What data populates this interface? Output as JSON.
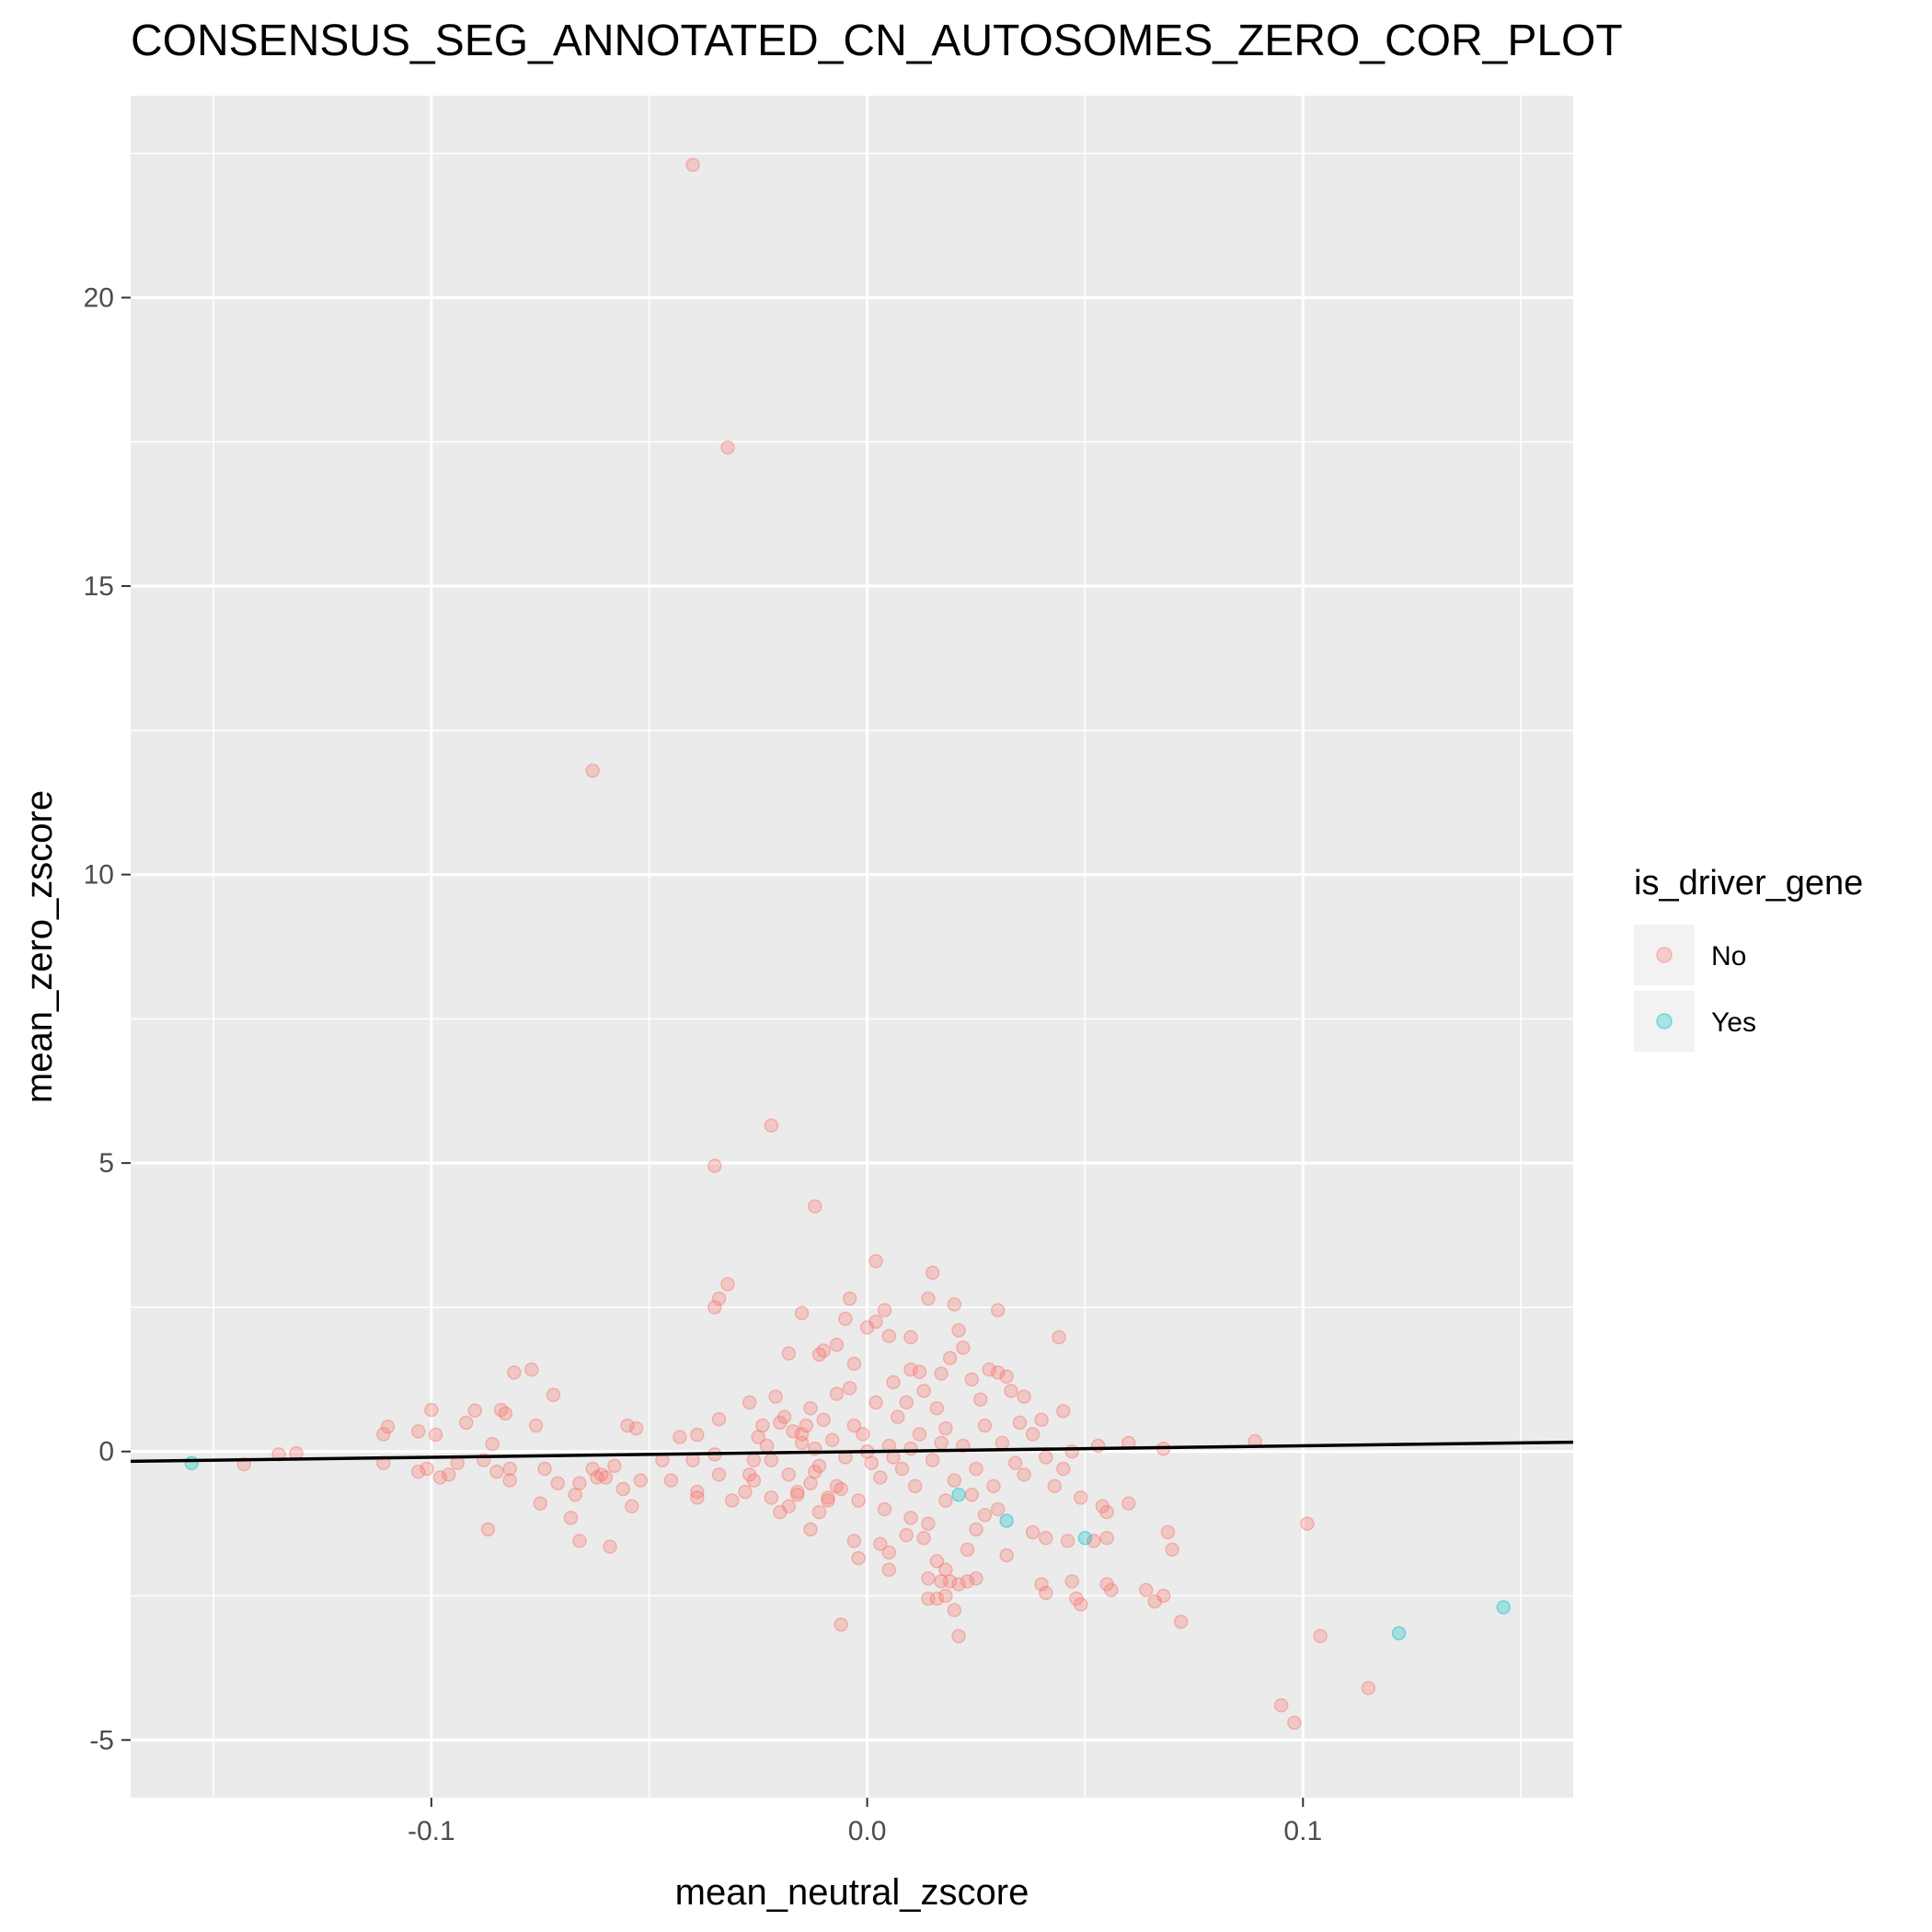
{
  "chart_data": {
    "type": "scatter",
    "title": "CONSENSUS_SEG_ANNOTATED_CN_AUTOSOMES_ZERO_COR_PLOT",
    "xlabel": "mean_neutral_zscore",
    "ylabel": "mean_zero_zscore",
    "xlim": [
      -0.169,
      0.162
    ],
    "ylim": [
      -6.0,
      23.5
    ],
    "x_ticks": [
      -0.1,
      0.0,
      0.1
    ],
    "x_tick_labels": [
      "-0.1",
      "0.0",
      "0.1"
    ],
    "y_ticks": [
      -5,
      0,
      5,
      10,
      15,
      20
    ],
    "y_tick_labels": [
      "-5",
      "0",
      "5",
      "10",
      "15",
      "20"
    ],
    "grid": true,
    "panel_background": "#ebebeb",
    "grid_color": "#ffffff",
    "legend": {
      "title": "is_driver_gene",
      "position": "right",
      "entries": [
        {
          "label": "No",
          "color": "#f8766d"
        },
        {
          "label": "Yes",
          "color": "#00bfc4"
        }
      ]
    },
    "trend_line": {
      "slope": 1.0,
      "intercept": 0.0,
      "color": "#000000"
    },
    "series": [
      {
        "name": "No",
        "color": "#f8766d",
        "opacity": 0.3,
        "points": [
          [
            -0.04,
            22.3
          ],
          [
            -0.032,
            17.4
          ],
          [
            -0.063,
            11.8
          ],
          [
            -0.022,
            5.65
          ],
          [
            -0.035,
            4.95
          ],
          [
            -0.012,
            4.25
          ],
          [
            0.002,
            3.3
          ],
          [
            0.015,
            3.1
          ],
          [
            -0.032,
            2.9
          ],
          [
            -0.034,
            2.65
          ],
          [
            -0.035,
            2.5
          ],
          [
            -0.004,
            2.65
          ],
          [
            0.014,
            2.65
          ],
          [
            0.02,
            2.55
          ],
          [
            0.03,
            2.45
          ],
          [
            0.004,
            2.45
          ],
          [
            -0.015,
            2.4
          ],
          [
            -0.005,
            2.3
          ],
          [
            0.002,
            2.25
          ],
          [
            0.0,
            2.15
          ],
          [
            0.021,
            2.1
          ],
          [
            0.005,
            2.0
          ],
          [
            0.01,
            1.98
          ],
          [
            0.044,
            1.98
          ],
          [
            -0.007,
            1.85
          ],
          [
            0.022,
            1.8
          ],
          [
            -0.01,
            1.75
          ],
          [
            -0.018,
            1.7
          ],
          [
            -0.011,
            1.68
          ],
          [
            0.019,
            1.62
          ],
          [
            -0.077,
            1.42
          ],
          [
            -0.081,
            1.37
          ],
          [
            -0.003,
            1.52
          ],
          [
            0.01,
            1.42
          ],
          [
            0.012,
            1.38
          ],
          [
            0.017,
            1.35
          ],
          [
            0.028,
            1.42
          ],
          [
            0.03,
            1.37
          ],
          [
            0.032,
            1.3
          ],
          [
            0.024,
            1.25
          ],
          [
            -0.072,
            0.98
          ],
          [
            -0.1,
            0.72
          ],
          [
            -0.09,
            0.71
          ],
          [
            -0.084,
            0.72
          ],
          [
            -0.083,
            0.66
          ],
          [
            -0.092,
            0.5
          ],
          [
            -0.11,
            0.43
          ],
          [
            -0.103,
            0.35
          ],
          [
            -0.111,
            0.3
          ],
          [
            -0.099,
            0.29
          ],
          [
            -0.086,
            0.13
          ],
          [
            -0.076,
            0.45
          ],
          [
            -0.034,
            0.56
          ],
          [
            -0.039,
            0.29
          ],
          [
            -0.043,
            0.25
          ],
          [
            -0.055,
            0.45
          ],
          [
            -0.053,
            0.4
          ],
          [
            -0.063,
            -0.3
          ],
          [
            -0.058,
            -0.25
          ],
          [
            -0.061,
            -0.4
          ],
          [
            -0.06,
            -0.45
          ],
          [
            -0.052,
            -0.5
          ],
          [
            -0.054,
            -0.95
          ],
          [
            -0.056,
            -0.65
          ],
          [
            -0.062,
            -0.45
          ],
          [
            -0.066,
            -0.55
          ],
          [
            -0.067,
            -0.75
          ],
          [
            -0.068,
            -1.15
          ],
          [
            -0.066,
            -1.55
          ],
          [
            -0.059,
            -1.65
          ],
          [
            -0.074,
            -0.3
          ],
          [
            -0.075,
            -0.9
          ],
          [
            -0.071,
            -0.55
          ],
          [
            -0.087,
            -1.35
          ],
          [
            -0.082,
            -0.3
          ],
          [
            -0.082,
            -0.5
          ],
          [
            -0.088,
            -0.15
          ],
          [
            -0.094,
            -0.2
          ],
          [
            -0.096,
            -0.4
          ],
          [
            -0.098,
            -0.45
          ],
          [
            -0.103,
            -0.35
          ],
          [
            -0.101,
            -0.3
          ],
          [
            -0.111,
            -0.2
          ],
          [
            -0.143,
            -0.22
          ],
          [
            -0.135,
            -0.05
          ],
          [
            -0.131,
            -0.03
          ],
          [
            -0.085,
            -0.35
          ],
          [
            -0.035,
            -0.05
          ],
          [
            -0.04,
            -0.15
          ],
          [
            -0.047,
            -0.15
          ],
          [
            -0.045,
            -0.5
          ],
          [
            -0.039,
            -0.7
          ],
          [
            -0.039,
            -0.8
          ],
          [
            -0.034,
            -0.4
          ],
          [
            -0.031,
            -0.85
          ],
          [
            -0.028,
            -0.7
          ],
          [
            -0.026,
            -0.5
          ],
          [
            -0.022,
            -0.8
          ],
          [
            -0.026,
            -0.15
          ],
          [
            -0.023,
            0.1
          ],
          [
            -0.024,
            0.45
          ],
          [
            -0.027,
            0.85
          ],
          [
            -0.021,
            0.95
          ],
          [
            -0.019,
            0.6
          ],
          [
            -0.017,
            0.35
          ],
          [
            -0.015,
            0.3
          ],
          [
            -0.013,
            0.75
          ],
          [
            -0.014,
            0.45
          ],
          [
            -0.012,
            -0.35
          ],
          [
            -0.013,
            -0.55
          ],
          [
            -0.016,
            -0.75
          ],
          [
            -0.018,
            -0.95
          ],
          [
            -0.02,
            -1.05
          ],
          [
            -0.013,
            -1.35
          ],
          [
            -0.011,
            -1.05
          ],
          [
            -0.009,
            -0.85
          ],
          [
            -0.007,
            -0.6
          ],
          [
            -0.006,
            -3.0
          ],
          [
            -0.003,
            -1.55
          ],
          [
            -0.002,
            -1.85
          ],
          [
            0.003,
            -1.6
          ],
          [
            0.005,
            -2.05
          ],
          [
            0.005,
            -1.75
          ],
          [
            0.009,
            -1.45
          ],
          [
            0.01,
            -1.15
          ],
          [
            0.013,
            -1.5
          ],
          [
            0.014,
            -1.25
          ],
          [
            0.016,
            -1.9
          ],
          [
            0.014,
            -2.2
          ],
          [
            0.014,
            -2.55
          ],
          [
            0.017,
            -2.25
          ],
          [
            0.019,
            -2.25
          ],
          [
            0.018,
            -2.5
          ],
          [
            0.021,
            -2.3
          ],
          [
            0.02,
            -2.75
          ],
          [
            0.016,
            -2.55
          ],
          [
            0.021,
            -3.2
          ],
          [
            0.018,
            -2.05
          ],
          [
            0.023,
            -2.25
          ],
          [
            0.025,
            -2.2
          ],
          [
            0.023,
            -1.7
          ],
          [
            0.025,
            -1.35
          ],
          [
            0.027,
            -1.1
          ],
          [
            0.03,
            -1.0
          ],
          [
            0.032,
            -1.8
          ],
          [
            0.04,
            -2.3
          ],
          [
            0.041,
            -2.45
          ],
          [
            0.038,
            -1.4
          ],
          [
            0.041,
            -1.5
          ],
          [
            0.046,
            -1.55
          ],
          [
            0.047,
            -2.25
          ],
          [
            0.048,
            -2.55
          ],
          [
            0.049,
            -2.65
          ],
          [
            0.052,
            -1.55
          ],
          [
            0.055,
            -1.5
          ],
          [
            0.055,
            -2.3
          ],
          [
            0.056,
            -2.4
          ],
          [
            0.055,
            -1.05
          ],
          [
            0.054,
            -0.95
          ],
          [
            0.06,
            -0.9
          ],
          [
            0.064,
            -2.4
          ],
          [
            0.066,
            -2.6
          ],
          [
            0.068,
            -2.5
          ],
          [
            0.069,
            -1.4
          ],
          [
            0.07,
            -1.7
          ],
          [
            0.072,
            -2.95
          ],
          [
            0.068,
            0.05
          ],
          [
            0.06,
            0.15
          ],
          [
            0.053,
            0.1
          ],
          [
            0.045,
            0.7
          ],
          [
            0.04,
            0.55
          ],
          [
            0.035,
            0.5
          ],
          [
            0.033,
            1.05
          ],
          [
            0.036,
            0.95
          ],
          [
            0.089,
            0.18
          ],
          [
            0.101,
            -1.25
          ],
          [
            0.104,
            -3.2
          ],
          [
            0.115,
            -4.1
          ],
          [
            0.095,
            -4.4
          ],
          [
            0.098,
            -4.7
          ],
          [
            0.0,
            0.0
          ],
          [
            0.005,
            0.1
          ],
          [
            -0.005,
            -0.1
          ],
          [
            0.008,
            -0.3
          ],
          [
            -0.008,
            0.2
          ],
          [
            0.012,
            0.3
          ],
          [
            -0.011,
            -0.25
          ],
          [
            0.003,
            -0.45
          ],
          [
            -0.003,
            0.45
          ],
          [
            0.015,
            -0.15
          ],
          [
            -0.015,
            0.15
          ],
          [
            0.018,
            0.4
          ],
          [
            -0.018,
            -0.4
          ],
          [
            0.007,
            0.6
          ],
          [
            -0.006,
            -0.65
          ],
          [
            0.011,
            -0.6
          ],
          [
            -0.01,
            0.55
          ],
          [
            0.02,
            -0.5
          ],
          [
            -0.02,
            0.5
          ],
          [
            0.002,
            0.85
          ],
          [
            -0.002,
            -0.85
          ],
          [
            0.009,
            0.85
          ],
          [
            -0.009,
            -0.8
          ],
          [
            0.016,
            0.75
          ],
          [
            -0.016,
            -0.7
          ],
          [
            0.022,
            0.1
          ],
          [
            -0.022,
            -0.15
          ],
          [
            0.025,
            -0.3
          ],
          [
            -0.025,
            0.25
          ],
          [
            0.027,
            0.45
          ],
          [
            -0.027,
            -0.4
          ],
          [
            0.013,
            1.05
          ],
          [
            -0.004,
            1.1
          ],
          [
            0.004,
            -1.0
          ],
          [
            0.018,
            -0.85
          ],
          [
            0.029,
            -0.6
          ],
          [
            0.031,
            0.15
          ],
          [
            0.034,
            -0.2
          ],
          [
            0.036,
            -0.4
          ],
          [
            0.038,
            0.3
          ],
          [
            0.041,
            -0.1
          ],
          [
            0.043,
            -0.6
          ],
          [
            0.045,
            -0.3
          ],
          [
            0.047,
            0.0
          ],
          [
            0.049,
            -0.8
          ],
          [
            0.026,
            0.9
          ],
          [
            0.024,
            -0.75
          ],
          [
            0.006,
            1.2
          ],
          [
            -0.007,
            1.0
          ],
          [
            0.001,
            -0.2
          ],
          [
            0.006,
            -0.1
          ],
          [
            -0.001,
            0.3
          ],
          [
            0.01,
            0.05
          ],
          [
            -0.012,
            0.05
          ],
          [
            0.017,
            0.15
          ]
        ]
      },
      {
        "name": "Yes",
        "color": "#00bfc4",
        "opacity": 0.3,
        "points": [
          [
            -0.155,
            -0.2
          ],
          [
            0.021,
            -0.75
          ],
          [
            0.032,
            -1.2
          ],
          [
            0.05,
            -1.5
          ],
          [
            0.122,
            -3.15
          ],
          [
            0.146,
            -2.7
          ]
        ]
      }
    ]
  }
}
